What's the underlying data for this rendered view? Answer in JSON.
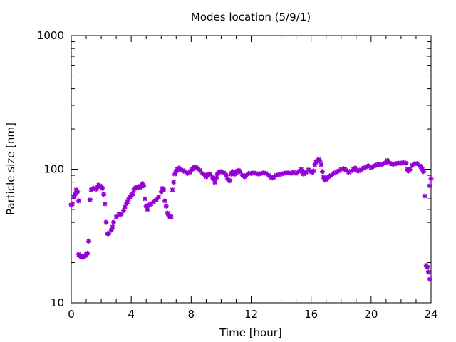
{
  "chart_data": {
    "type": "scatter",
    "title": "Modes location (5/9/1)",
    "xlabel": "Time [hour]",
    "ylabel": "Particle size [nm]",
    "xlim": [
      0,
      24
    ],
    "ylim": [
      10,
      1000
    ],
    "y_scale": "log",
    "x_ticks": [
      0,
      4,
      8,
      12,
      16,
      20,
      24
    ],
    "x_tick_labels": [
      "0",
      "4",
      "8",
      "12",
      "16",
      "20",
      "24"
    ],
    "y_ticks": [
      10,
      100,
      1000
    ],
    "y_tick_labels": [
      "10",
      "100",
      "1000"
    ],
    "grid": false,
    "legend": "none",
    "marker": "star",
    "color": "#9400d3",
    "series": [
      {
        "points": [
          [
            0.0,
            54
          ],
          [
            0.08,
            55
          ],
          [
            0.17,
            62
          ],
          [
            0.25,
            65
          ],
          [
            0.33,
            70
          ],
          [
            0.42,
            68
          ],
          [
            0.5,
            58
          ],
          [
            0.5,
            23
          ],
          [
            0.58,
            22.5
          ],
          [
            0.67,
            22
          ],
          [
            0.75,
            22.3
          ],
          [
            0.83,
            22
          ],
          [
            0.92,
            22.5
          ],
          [
            1.0,
            23
          ],
          [
            1.08,
            23.5
          ],
          [
            1.17,
            29
          ],
          [
            1.25,
            59
          ],
          [
            1.33,
            70
          ],
          [
            1.5,
            72
          ],
          [
            1.67,
            71
          ],
          [
            1.75,
            74
          ],
          [
            1.83,
            76
          ],
          [
            1.92,
            75
          ],
          [
            2.0,
            74
          ],
          [
            2.08,
            72
          ],
          [
            2.17,
            65
          ],
          [
            2.25,
            55
          ],
          [
            2.33,
            40
          ],
          [
            2.42,
            33
          ],
          [
            2.5,
            33
          ],
          [
            2.67,
            35
          ],
          [
            2.75,
            37
          ],
          [
            2.83,
            40
          ],
          [
            3.0,
            44
          ],
          [
            3.17,
            46
          ],
          [
            3.33,
            46
          ],
          [
            3.5,
            49
          ],
          [
            3.58,
            52
          ],
          [
            3.67,
            55
          ],
          [
            3.75,
            57
          ],
          [
            3.83,
            60
          ],
          [
            3.92,
            62
          ],
          [
            4.0,
            64
          ],
          [
            4.08,
            65
          ],
          [
            4.17,
            70
          ],
          [
            4.25,
            72
          ],
          [
            4.33,
            73
          ],
          [
            4.42,
            73
          ],
          [
            4.5,
            74
          ],
          [
            4.58,
            73
          ],
          [
            4.67,
            75
          ],
          [
            4.75,
            78
          ],
          [
            4.83,
            75
          ],
          [
            4.92,
            60
          ],
          [
            5.0,
            53
          ],
          [
            5.08,
            50
          ],
          [
            5.17,
            54
          ],
          [
            5.33,
            55
          ],
          [
            5.5,
            57
          ],
          [
            5.67,
            59
          ],
          [
            5.83,
            62
          ],
          [
            6.0,
            68
          ],
          [
            6.08,
            72
          ],
          [
            6.17,
            70
          ],
          [
            6.25,
            58
          ],
          [
            6.33,
            53
          ],
          [
            6.42,
            47
          ],
          [
            6.5,
            45
          ],
          [
            6.58,
            44
          ],
          [
            6.67,
            44
          ],
          [
            6.75,
            70
          ],
          [
            6.83,
            80
          ],
          [
            6.92,
            92
          ],
          [
            7.0,
            97
          ],
          [
            7.08,
            100
          ],
          [
            7.17,
            102
          ],
          [
            7.25,
            99
          ],
          [
            7.42,
            98
          ],
          [
            7.58,
            96
          ],
          [
            7.75,
            93
          ],
          [
            7.92,
            95
          ],
          [
            8.0,
            98
          ],
          [
            8.08,
            100
          ],
          [
            8.17,
            103
          ],
          [
            8.25,
            104
          ],
          [
            8.42,
            102
          ],
          [
            8.58,
            98
          ],
          [
            8.75,
            93
          ],
          [
            8.92,
            90
          ],
          [
            9.0,
            88
          ],
          [
            9.08,
            91
          ],
          [
            9.25,
            92
          ],
          [
            9.42,
            87
          ],
          [
            9.5,
            84
          ],
          [
            9.58,
            80
          ],
          [
            9.67,
            86
          ],
          [
            9.75,
            92
          ],
          [
            9.83,
            95
          ],
          [
            10.0,
            96
          ],
          [
            10.17,
            94
          ],
          [
            10.33,
            90
          ],
          [
            10.42,
            85
          ],
          [
            10.5,
            83
          ],
          [
            10.58,
            82
          ],
          [
            10.67,
            92
          ],
          [
            10.75,
            96
          ],
          [
            10.83,
            95
          ],
          [
            10.92,
            92
          ],
          [
            11.0,
            94
          ],
          [
            11.08,
            97
          ],
          [
            11.17,
            98
          ],
          [
            11.25,
            96
          ],
          [
            11.42,
            90
          ],
          [
            11.5,
            89
          ],
          [
            11.58,
            88
          ],
          [
            11.67,
            90
          ],
          [
            11.83,
            93
          ],
          [
            12.0,
            93
          ],
          [
            12.17,
            94
          ],
          [
            12.33,
            93
          ],
          [
            12.5,
            92
          ],
          [
            12.67,
            93
          ],
          [
            12.83,
            94
          ],
          [
            13.0,
            93
          ],
          [
            13.17,
            90
          ],
          [
            13.33,
            87
          ],
          [
            13.42,
            86
          ],
          [
            13.5,
            87
          ],
          [
            13.67,
            90
          ],
          [
            13.83,
            91
          ],
          [
            14.0,
            92
          ],
          [
            14.17,
            93
          ],
          [
            14.33,
            94
          ],
          [
            14.5,
            94
          ],
          [
            14.67,
            93
          ],
          [
            14.83,
            95
          ],
          [
            15.0,
            93
          ],
          [
            15.17,
            96
          ],
          [
            15.33,
            100
          ],
          [
            15.42,
            96
          ],
          [
            15.5,
            92
          ],
          [
            15.67,
            95
          ],
          [
            15.83,
            99
          ],
          [
            16.0,
            96
          ],
          [
            16.08,
            95
          ],
          [
            16.17,
            97
          ],
          [
            16.25,
            108
          ],
          [
            16.33,
            113
          ],
          [
            16.42,
            116
          ],
          [
            16.5,
            118
          ],
          [
            16.58,
            115
          ],
          [
            16.67,
            108
          ],
          [
            16.75,
            96
          ],
          [
            16.83,
            87
          ],
          [
            16.92,
            83
          ],
          [
            17.0,
            84
          ],
          [
            17.08,
            86
          ],
          [
            17.17,
            88
          ],
          [
            17.33,
            90
          ],
          [
            17.5,
            93
          ],
          [
            17.67,
            95
          ],
          [
            17.83,
            97
          ],
          [
            18.0,
            100
          ],
          [
            18.17,
            101
          ],
          [
            18.25,
            100
          ],
          [
            18.33,
            98
          ],
          [
            18.5,
            95
          ],
          [
            18.67,
            97
          ],
          [
            18.83,
            100
          ],
          [
            18.92,
            102
          ],
          [
            19.0,
            98
          ],
          [
            19.17,
            97
          ],
          [
            19.33,
            99
          ],
          [
            19.5,
            102
          ],
          [
            19.67,
            104
          ],
          [
            19.83,
            106
          ],
          [
            20.0,
            103
          ],
          [
            20.17,
            105
          ],
          [
            20.33,
            107
          ],
          [
            20.5,
            109
          ],
          [
            20.67,
            108
          ],
          [
            20.83,
            110
          ],
          [
            21.0,
            112
          ],
          [
            21.08,
            116
          ],
          [
            21.17,
            114
          ],
          [
            21.33,
            110
          ],
          [
            21.5,
            109
          ],
          [
            21.67,
            110
          ],
          [
            21.83,
            111
          ],
          [
            22.0,
            111
          ],
          [
            22.17,
            112
          ],
          [
            22.33,
            111
          ],
          [
            22.42,
            100
          ],
          [
            22.5,
            97
          ],
          [
            22.58,
            100
          ],
          [
            22.75,
            107
          ],
          [
            22.92,
            110
          ],
          [
            23.08,
            110
          ],
          [
            23.25,
            106
          ],
          [
            23.33,
            104
          ],
          [
            23.42,
            100
          ],
          [
            23.5,
            96
          ],
          [
            23.58,
            63
          ],
          [
            23.67,
            19
          ],
          [
            23.75,
            18.5
          ],
          [
            23.83,
            17
          ],
          [
            23.92,
            15
          ],
          [
            23.92,
            75
          ],
          [
            24.0,
            85
          ]
        ]
      }
    ]
  }
}
